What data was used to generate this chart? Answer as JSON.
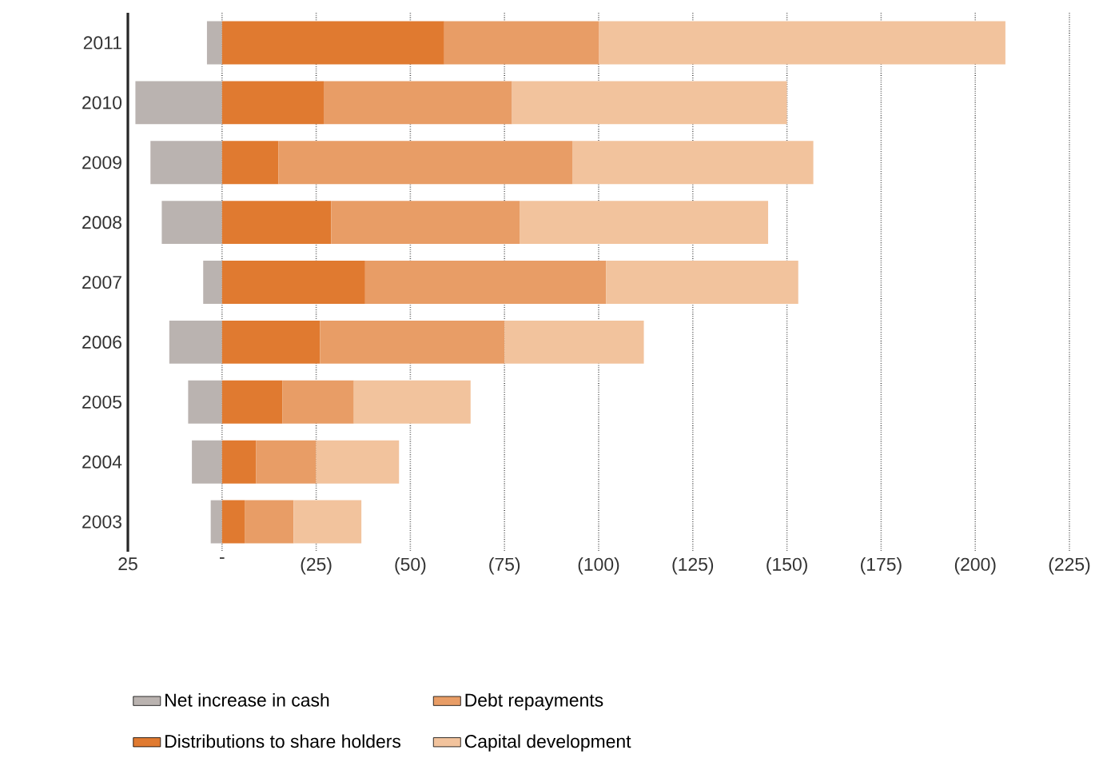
{
  "chart_data": {
    "type": "bar",
    "orientation": "horizontal",
    "stacked": true,
    "categories": [
      "2011",
      "2010",
      "2009",
      "2008",
      "2007",
      "2006",
      "2005",
      "2004",
      "2003"
    ],
    "series": [
      {
        "name": "Net increase in cash",
        "color": "#bab3b0",
        "values": [
          4,
          23,
          19,
          16,
          5,
          14,
          9,
          8,
          3
        ]
      },
      {
        "name": "Distributions to share holders",
        "color": "#e07a30",
        "values": [
          -59,
          -27,
          -15,
          -29,
          -38,
          -26,
          -16,
          -9,
          -6
        ]
      },
      {
        "name": "Debt repayments",
        "color": "#e89d66",
        "values": [
          -41,
          -50,
          -78,
          -50,
          -64,
          -49,
          -19,
          -16,
          -13
        ]
      },
      {
        "name": "Capital development",
        "color": "#f2c39d",
        "values": [
          -108,
          -73,
          -64,
          -66,
          -51,
          -37,
          -31,
          -22,
          -18
        ]
      }
    ],
    "xlim": [
      25,
      -225
    ],
    "xticks": [
      25,
      {
        "value": 0,
        "label": "-"
      },
      {
        "value": -25,
        "label": "(25)"
      },
      {
        "value": -50,
        "label": "(50)"
      },
      {
        "value": -75,
        "label": "(75)"
      },
      {
        "value": -100,
        "label": "(100)"
      },
      {
        "value": -125,
        "label": "(125)"
      },
      {
        "value": -150,
        "label": "(150)"
      },
      {
        "value": -175,
        "label": "(175)"
      },
      {
        "value": -200,
        "label": "(200)"
      },
      {
        "value": -225,
        "label": "(225)"
      }
    ],
    "grid": "x",
    "legend": "bottom"
  }
}
